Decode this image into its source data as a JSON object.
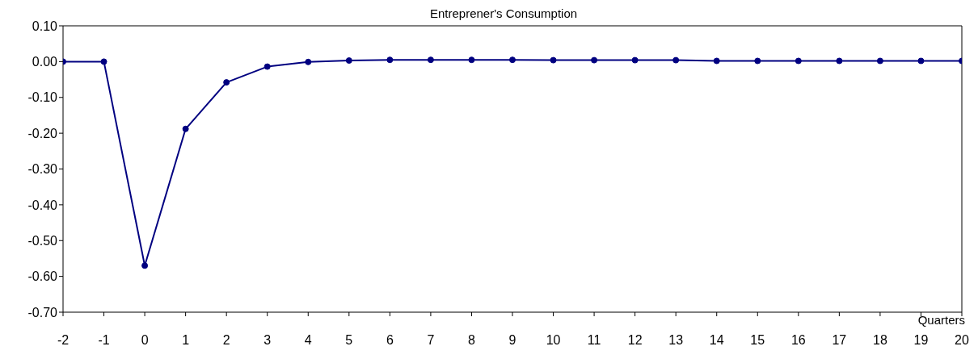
{
  "chart_data": {
    "type": "line",
    "title": "Entreprener's Consumption",
    "xlabel": "Quarters",
    "x": [
      -2,
      -1,
      0,
      1,
      2,
      3,
      4,
      5,
      6,
      7,
      8,
      9,
      10,
      11,
      12,
      13,
      14,
      15,
      16,
      17,
      18,
      19,
      20
    ],
    "series": [
      {
        "color": "#000080",
        "values": [
          0,
          0,
          -0.57,
          -0.188,
          -0.058,
          -0.014,
          -0.001,
          0.003,
          0.005,
          0.005,
          0.005,
          0.005,
          0.004,
          0.004,
          0.004,
          0.004,
          0.002,
          0.002,
          0.002,
          0.002,
          0.002,
          0.002,
          0.002
        ]
      }
    ],
    "xlim": [
      -2,
      20
    ],
    "xticks": [
      -2,
      -1,
      0,
      1,
      2,
      3,
      4,
      5,
      6,
      7,
      8,
      9,
      10,
      11,
      12,
      13,
      14,
      15,
      16,
      17,
      18,
      19,
      20
    ],
    "ylim": [
      -0.7,
      0.1
    ],
    "yticks": [
      {
        "value": -0.7,
        "label": "-0.70"
      },
      {
        "value": -0.6,
        "label": "-0.60"
      },
      {
        "value": -0.5,
        "label": "-0.50"
      },
      {
        "value": -0.4,
        "label": "-0.40"
      },
      {
        "value": -0.3,
        "label": "-0.30"
      },
      {
        "value": -0.2,
        "label": "-0.20"
      },
      {
        "value": -0.1,
        "label": "-0.10"
      },
      {
        "value": 0,
        "label": "0.00"
      },
      {
        "value": 0.1,
        "label": "0.10"
      }
    ],
    "grid": false,
    "legend": false,
    "marker": "circle",
    "line_style": "solid"
  }
}
